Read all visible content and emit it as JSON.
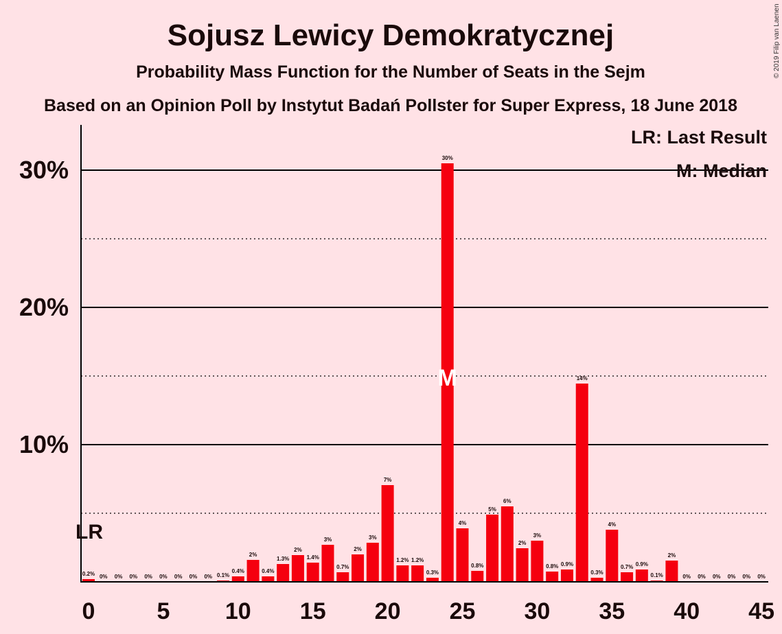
{
  "chart_data": {
    "type": "bar",
    "title": "Sojusz Lewicy Demokratycznej",
    "subtitle": "Probability Mass Function for the Number of Seats in the Sejm",
    "subtitle2": "Based on an Opinion Poll by Instytut Badań Pollster for Super Express, 18 June 2018",
    "copyright": "© 2019 Filip van Laenen",
    "legend": {
      "lr": "LR: Last Result",
      "median": "M: Median",
      "placement": "top-right"
    },
    "x": [
      0,
      1,
      2,
      3,
      4,
      5,
      6,
      7,
      8,
      9,
      10,
      11,
      12,
      13,
      14,
      15,
      16,
      17,
      18,
      19,
      20,
      21,
      22,
      23,
      24,
      25,
      26,
      27,
      28,
      29,
      30,
      31,
      32,
      33,
      34,
      35,
      36,
      37,
      38,
      39,
      40,
      41,
      42,
      43,
      44,
      45
    ],
    "values": [
      0.2,
      0,
      0,
      0,
      0,
      0,
      0,
      0,
      0,
      0.1,
      0.4,
      1.6,
      0.4,
      1.3,
      1.95,
      1.4,
      2.7,
      0.7,
      2.0,
      2.85,
      7.05,
      1.2,
      1.2,
      0.3,
      30.5,
      3.9,
      0.8,
      4.9,
      5.5,
      2.45,
      3.0,
      0.75,
      0.9,
      14.45,
      0.3,
      3.8,
      0.7,
      0.9,
      0.1,
      1.55,
      0,
      0,
      0,
      0,
      0,
      0
    ],
    "data_labels": [
      "0.2%",
      "0%",
      "0%",
      "0%",
      "0%",
      "0%",
      "0%",
      "0%",
      "0%",
      "0.1%",
      "0.4%",
      "2%",
      "0.4%",
      "1.3%",
      "2%",
      "1.4%",
      "3%",
      "0.7%",
      "2%",
      "3%",
      "7%",
      "1.2%",
      "1.2%",
      "0.3%",
      "30%",
      "4%",
      "0.8%",
      "5%",
      "6%",
      "2%",
      "3%",
      "0.8%",
      "0.9%",
      "14%",
      "0.3%",
      "4%",
      "0.7%",
      "0.9%",
      "0.1%",
      "2%",
      "0%",
      "0%",
      "0%",
      "0%",
      "0%",
      "0%"
    ],
    "xticks": [
      0,
      5,
      10,
      15,
      20,
      25,
      30,
      35,
      40,
      45
    ],
    "yticks": [
      10,
      20,
      30
    ],
    "ytick_labels": [
      "10%",
      "20%",
      "30%"
    ],
    "xlim": [
      -0.5,
      45.5
    ],
    "ylim": [
      0,
      33
    ],
    "last_result_seat": 0,
    "last_result_label": "LR",
    "median_seat": 24,
    "median_label": "M",
    "bar_color": "#F5000F",
    "background_color": "#FFE2E6",
    "grid": "solid at 10% steps, dotted at 5% steps"
  }
}
